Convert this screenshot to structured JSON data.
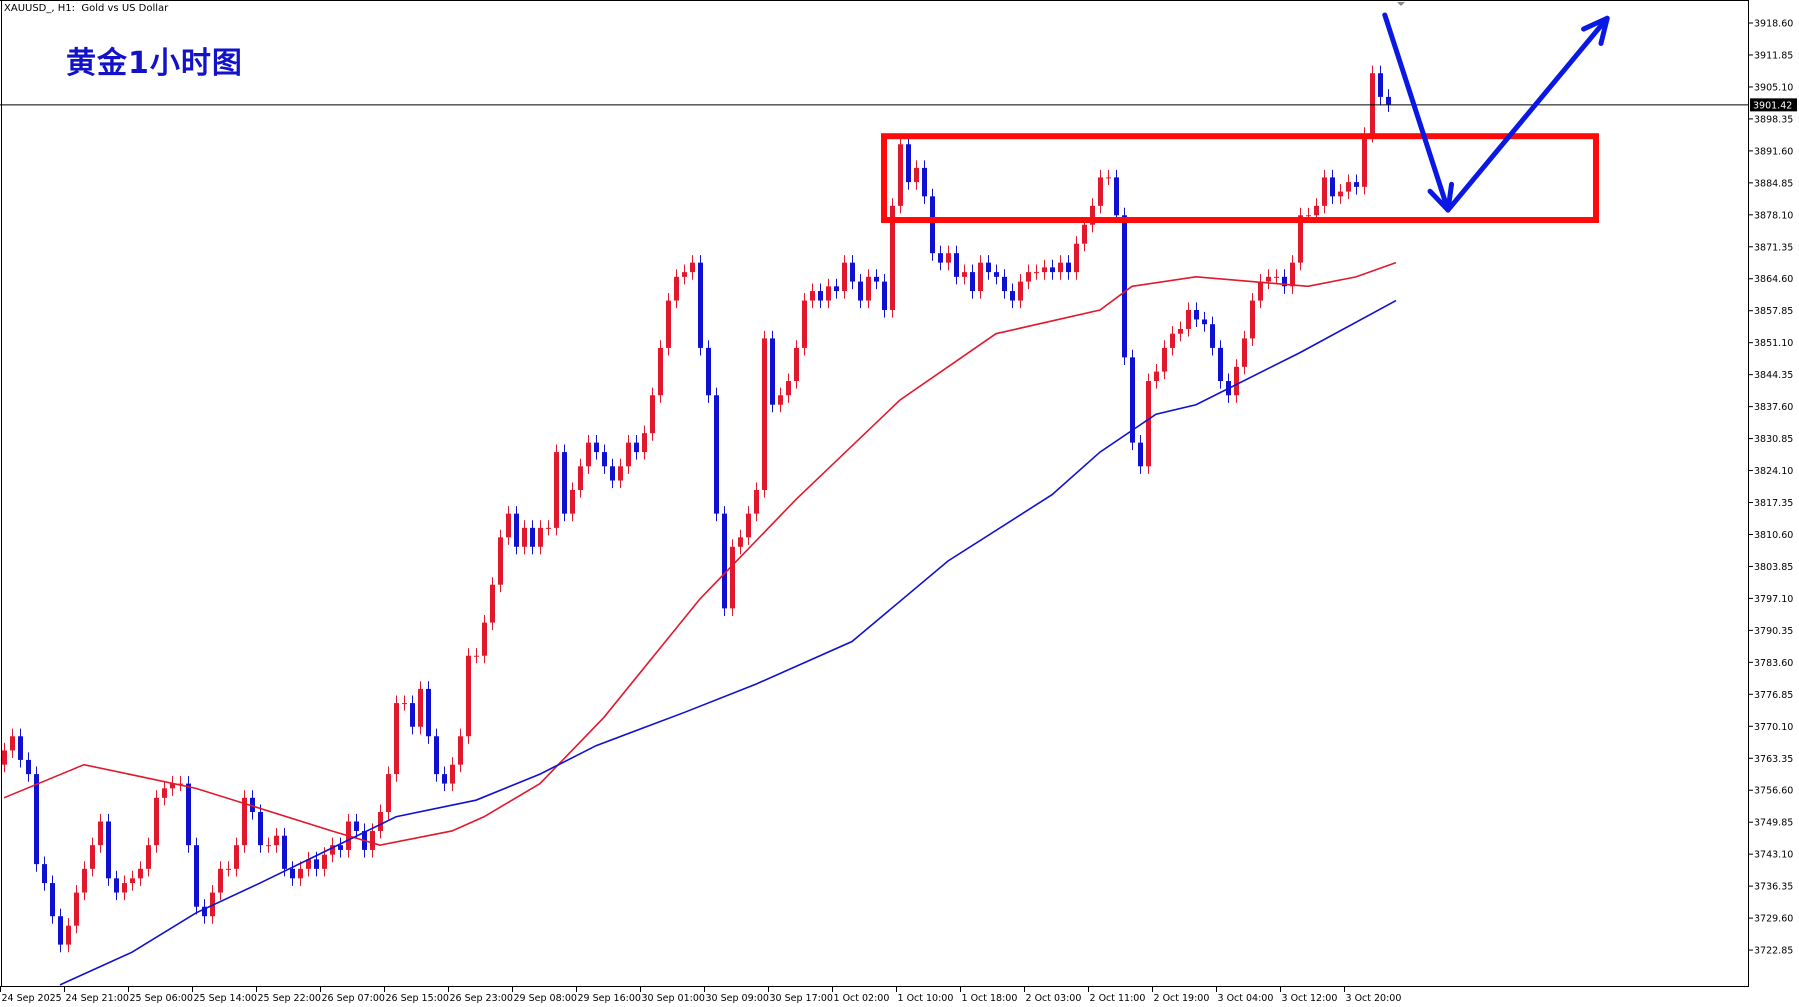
{
  "header": {
    "symbol_caption": "XAUUSD_, H1:  Gold vs US Dollar",
    "annotation_title": "黄金1小时图"
  },
  "colors": {
    "bull": "#e0192e",
    "bear": "#1010d0",
    "ma_fast": "#e0192e",
    "ma_slow": "#1010d0",
    "zone": "#ff0a0a",
    "arrow": "#0a18e6",
    "title": "#1212c8"
  },
  "chart_data": {
    "type": "candlestick",
    "symbol": "XAUUSD_",
    "timeframe": "H1",
    "ylim": [
      3715.3,
      3923.5
    ],
    "y_ticks": [
      "3918.60",
      "3911.85",
      "3905.10",
      "3898.35",
      "3891.60",
      "3884.85",
      "3878.10",
      "3871.35",
      "3864.60",
      "3857.85",
      "3851.10",
      "3844.35",
      "3837.60",
      "3830.85",
      "3824.10",
      "3817.35",
      "3810.60",
      "3803.85",
      "3797.10",
      "3790.35",
      "3783.60",
      "3776.85",
      "3770.10",
      "3763.35",
      "3756.60",
      "3749.85",
      "3743.10",
      "3736.35",
      "3729.60",
      "3722.85"
    ],
    "x_ticks": [
      "24 Sep 2025",
      "24 Sep 21:00",
      "25 Sep 06:00",
      "25 Sep 14:00",
      "25 Sep 22:00",
      "26 Sep 07:00",
      "26 Sep 15:00",
      "26 Sep 23:00",
      "29 Sep 08:00",
      "29 Sep 16:00",
      "30 Sep 01:00",
      "30 Sep 09:00",
      "30 Sep 17:00",
      "1 Oct 02:00",
      "1 Oct 10:00",
      "1 Oct 18:00",
      "2 Oct 03:00",
      "2 Oct 11:00",
      "2 Oct 19:00",
      "3 Oct 04:00",
      "3 Oct 12:00",
      "3 Oct 20:00"
    ],
    "first_open": 3762,
    "closes": [
      3765,
      3768,
      3763,
      3760,
      3741,
      3737,
      3730,
      3724,
      3728,
      3735,
      3740,
      3745,
      3750,
      3738,
      3735,
      3737,
      3738,
      3740,
      3745,
      3755,
      3757,
      3758,
      3758,
      3745,
      3732,
      3730,
      3735,
      3740,
      3740,
      3745,
      3755,
      3752,
      3745,
      3745,
      3747,
      3740,
      3738,
      3740,
      3742,
      3740,
      3743,
      3745,
      3744,
      3750,
      3748,
      3744,
      3748,
      3752,
      3760,
      3775,
      3775,
      3770,
      3778,
      3768,
      3760,
      3758,
      3762,
      3768,
      3785,
      3785,
      3792,
      3800,
      3810,
      3815,
      3808,
      3812,
      3808,
      3812,
      3812,
      3828,
      3815,
      3820,
      3825,
      3830,
      3828,
      3825,
      3822,
      3825,
      3830,
      3828,
      3832,
      3840,
      3850,
      3860,
      3865,
      3866,
      3868,
      3850,
      3840,
      3815,
      3795,
      3808,
      3810,
      3815,
      3820,
      3852,
      3838,
      3840,
      3843,
      3850,
      3860,
      3862,
      3860,
      3863,
      3862,
      3868,
      3864,
      3860,
      3865,
      3864,
      3858,
      3880,
      3893,
      3885,
      3888,
      3882,
      3870,
      3868,
      3870,
      3865,
      3866,
      3862,
      3868,
      3866,
      3865,
      3862,
      3860,
      3864,
      3866,
      3866,
      3867,
      3866,
      3868,
      3866,
      3872,
      3876,
      3880,
      3886,
      3886,
      3878,
      3848,
      3830,
      3825,
      3843,
      3845,
      3850,
      3853,
      3854,
      3858,
      3856,
      3855,
      3850,
      3843,
      3840,
      3846,
      3852,
      3860,
      3864,
      3865,
      3865,
      3863,
      3868,
      3878,
      3878,
      3880,
      3886,
      3882,
      3883,
      3885,
      3884,
      3895,
      3908,
      3903,
      3901.42
    ],
    "moving_averages": [
      {
        "color_key": "ma_fast",
        "points": [
          [
            0,
            3755
          ],
          [
            10,
            3762
          ],
          [
            24,
            3757
          ],
          [
            41,
            3748
          ],
          [
            47,
            3745
          ],
          [
            56,
            3748
          ],
          [
            60,
            3751
          ],
          [
            67,
            3758
          ],
          [
            75,
            3772
          ],
          [
            87,
            3797
          ],
          [
            99,
            3818
          ],
          [
            112,
            3839
          ],
          [
            124,
            3853
          ],
          [
            137,
            3858
          ],
          [
            141,
            3863
          ],
          [
            149,
            3865
          ],
          [
            156,
            3864
          ],
          [
            163,
            3863
          ],
          [
            169,
            3865
          ],
          [
            174,
            3868
          ]
        ]
      },
      {
        "color_key": "ma_slow",
        "points": [
          [
            7,
            3715.5
          ],
          [
            16,
            3722.4
          ],
          [
            24,
            3730.7
          ],
          [
            32,
            3737
          ],
          [
            41,
            3744.4
          ],
          [
            49,
            3751
          ],
          [
            59,
            3754.5
          ],
          [
            67,
            3760
          ],
          [
            74,
            3766
          ],
          [
            85,
            3773
          ],
          [
            94,
            3779
          ],
          [
            106,
            3788
          ],
          [
            118,
            3805
          ],
          [
            131,
            3819
          ],
          [
            137,
            3828
          ],
          [
            144,
            3836
          ],
          [
            149,
            3838
          ],
          [
            162,
            3849
          ],
          [
            174,
            3860
          ]
        ]
      }
    ],
    "current_price": "3901.42",
    "annotations": {
      "zone": {
        "price_top": 3894.7,
        "price_bottom": 3877.0,
        "bar_start": 110,
        "bar_end": 199
      },
      "arrow_path": [
        [
          172.6,
          3920.3
        ],
        [
          180.5,
          3879.1
        ],
        [
          200.4,
          3919.6
        ]
      ]
    }
  }
}
